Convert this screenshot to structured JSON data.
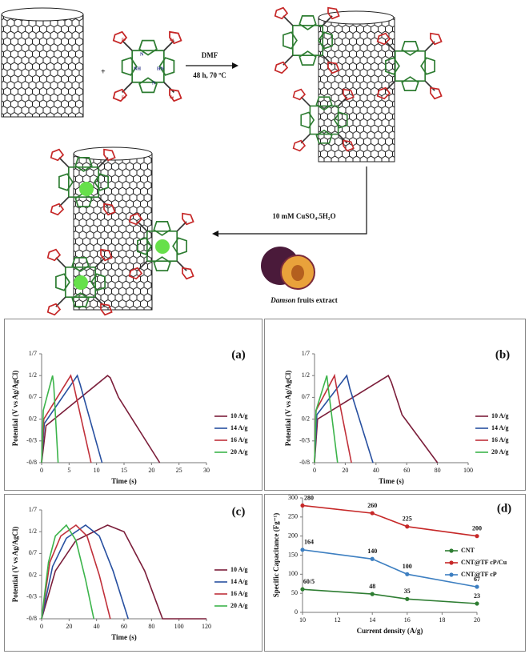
{
  "scheme": {
    "plus": "+",
    "reagent": "DMF",
    "conditions": "48 h, 70 ºC",
    "copper_reagent": "10 mM CuSO₄.5H₂O",
    "extract_italic": "Damson",
    "extract_rest": " fruits extract",
    "molecule_labels": {
      "nh": "NH",
      "hn": "HN",
      "n": "N",
      "fe": "Fe"
    }
  },
  "chart_data": [
    {
      "type": "line",
      "label": "(a)",
      "x_label": "Time (s)",
      "y_label": "Potential (V vs Ag/AgCl)",
      "xlim": [
        0,
        30
      ],
      "xticks": [
        0,
        5,
        10,
        15,
        20,
        25,
        30
      ],
      "ylim": [
        -0.8,
        1.7
      ],
      "yticks": [
        {
          "value": -0.8,
          "label": "-0/8"
        },
        {
          "value": -0.3,
          "label": "-0/3"
        },
        {
          "value": 0.2,
          "label": "0/2"
        },
        {
          "value": 0.7,
          "label": "0/7"
        },
        {
          "value": 1.2,
          "label": "1/2"
        },
        {
          "value": 1.7,
          "label": "1/7"
        }
      ],
      "legend": "right",
      "series": [
        {
          "name": "10 A/g",
          "color": "#7b1e3a",
          "x": [
            0,
            0.8,
            12,
            12.5,
            14,
            21.5
          ],
          "values": [
            -0.8,
            0.05,
            1.2,
            1.15,
            0.7,
            -0.8
          ]
        },
        {
          "name": "14 A/g",
          "color": "#2850a0",
          "x": [
            0,
            0.5,
            6.5,
            7,
            11
          ],
          "values": [
            -0.8,
            0.1,
            1.2,
            1.0,
            -0.8
          ]
        },
        {
          "name": "16 A/g",
          "color": "#c0303a",
          "x": [
            0,
            0.4,
            5.3,
            5.8,
            9
          ],
          "values": [
            -0.8,
            0.2,
            1.2,
            1.0,
            -0.8
          ]
        },
        {
          "name": "20 A/g",
          "color": "#3cb44b",
          "x": [
            0,
            0.3,
            2,
            2.2,
            3
          ],
          "values": [
            -0.8,
            0.4,
            1.2,
            1.0,
            -0.8
          ]
        }
      ]
    },
    {
      "type": "line",
      "label": "(b)",
      "x_label": "Time (s)",
      "y_label": "Potential (V vs Ag/AgCl)",
      "xlim": [
        0,
        100
      ],
      "xticks": [
        0,
        20,
        40,
        60,
        80,
        100
      ],
      "ylim": [
        -0.8,
        1.7
      ],
      "yticks": [
        {
          "value": -0.8,
          "label": "-0/8"
        },
        {
          "value": -0.3,
          "label": "-0/3"
        },
        {
          "value": 0.2,
          "label": "0/2"
        },
        {
          "value": 0.7,
          "label": "0/7"
        },
        {
          "value": 1.2,
          "label": "1/2"
        },
        {
          "value": 1.7,
          "label": "1/7"
        }
      ],
      "legend": "right",
      "series": [
        {
          "name": "10 A/g",
          "color": "#7b1e3a",
          "x": [
            0,
            2,
            48,
            50,
            57,
            80
          ],
          "values": [
            -0.8,
            0.2,
            1.2,
            1.05,
            0.3,
            -0.8
          ]
        },
        {
          "name": "14 A/g",
          "color": "#2850a0",
          "x": [
            0,
            1.5,
            21,
            23,
            38
          ],
          "values": [
            -0.8,
            0.3,
            1.2,
            0.9,
            -0.8
          ]
        },
        {
          "name": "16 A/g",
          "color": "#c0303a",
          "x": [
            0,
            1,
            13,
            14.5,
            24
          ],
          "values": [
            -0.8,
            0.4,
            1.2,
            0.9,
            -0.8
          ]
        },
        {
          "name": "20 A/g",
          "color": "#3cb44b",
          "x": [
            0,
            1,
            8,
            9,
            15
          ],
          "values": [
            -0.8,
            0.4,
            1.2,
            0.9,
            -0.8
          ]
        }
      ]
    },
    {
      "type": "line",
      "label": "(c)",
      "x_label": "Time (s)",
      "y_label": "Potential (V vs Ag/AgCl)",
      "xlim": [
        0,
        120
      ],
      "xticks": [
        0,
        20,
        40,
        60,
        80,
        100,
        120
      ],
      "ylim": [
        -0.8,
        1.7
      ],
      "yticks": [
        {
          "value": -0.8,
          "label": "-0/8"
        },
        {
          "value": -0.3,
          "label": "-0/3"
        },
        {
          "value": 0.2,
          "label": "0/2"
        },
        {
          "value": 0.7,
          "label": "0/7"
        },
        {
          "value": 1.2,
          "label": "1/2"
        },
        {
          "value": 1.7,
          "label": "1/7"
        }
      ],
      "legend": "right",
      "series": [
        {
          "name": "10 A/g",
          "color": "#7b1e3a",
          "x": [
            0,
            10,
            25,
            48,
            60,
            75,
            88,
            120
          ],
          "values": [
            -0.8,
            0.3,
            1.0,
            1.35,
            1.2,
            0.3,
            -0.8,
            -0.8
          ]
        },
        {
          "name": "14 A/g",
          "color": "#2850a0",
          "x": [
            0,
            8,
            18,
            32,
            42,
            52,
            63
          ],
          "values": [
            -0.8,
            0.4,
            1.05,
            1.35,
            1.1,
            0.3,
            -0.8
          ]
        },
        {
          "name": "16 A/g",
          "color": "#c0303a",
          "x": [
            0,
            6,
            14,
            25,
            33,
            42,
            50
          ],
          "values": [
            -0.8,
            0.5,
            1.1,
            1.35,
            1.1,
            0.2,
            -0.8
          ]
        },
        {
          "name": "20 A/g",
          "color": "#3cb44b",
          "x": [
            0,
            5,
            10,
            18,
            25,
            32,
            38
          ],
          "values": [
            -0.8,
            0.5,
            1.1,
            1.35,
            1.0,
            0.1,
            -0.8
          ]
        }
      ]
    },
    {
      "type": "line",
      "label": "(d)",
      "x_label": "Current density (A/g)",
      "y_label": "Specific Capacitance (Fg⁻¹)",
      "xlim": [
        10,
        20
      ],
      "xticks": [
        10,
        12,
        14,
        16,
        18,
        20
      ],
      "ylim": [
        0,
        300
      ],
      "yticks": [
        0,
        50,
        100,
        150,
        200,
        250,
        300
      ],
      "legend": "right",
      "markers": true,
      "series": [
        {
          "name": "CNT",
          "color": "#2e7d32",
          "x": [
            10,
            14,
            16,
            20
          ],
          "values": [
            60.5,
            48,
            35,
            23
          ],
          "value_labels": [
            "60/5",
            "48",
            "35",
            "23"
          ]
        },
        {
          "name": "CNT@TF cP/Cu",
          "color": "#c62828",
          "x": [
            10,
            14,
            16,
            20
          ],
          "values": [
            280,
            260,
            225,
            200
          ],
          "value_labels": [
            "280",
            "260",
            "225",
            "200"
          ]
        },
        {
          "name": "CNT@TF cP",
          "color": "#3d7fc1",
          "x": [
            10,
            14,
            16,
            20
          ],
          "values": [
            164,
            140,
            100,
            67
          ],
          "value_labels": [
            "164",
            "140",
            "100",
            "67"
          ]
        }
      ]
    }
  ]
}
